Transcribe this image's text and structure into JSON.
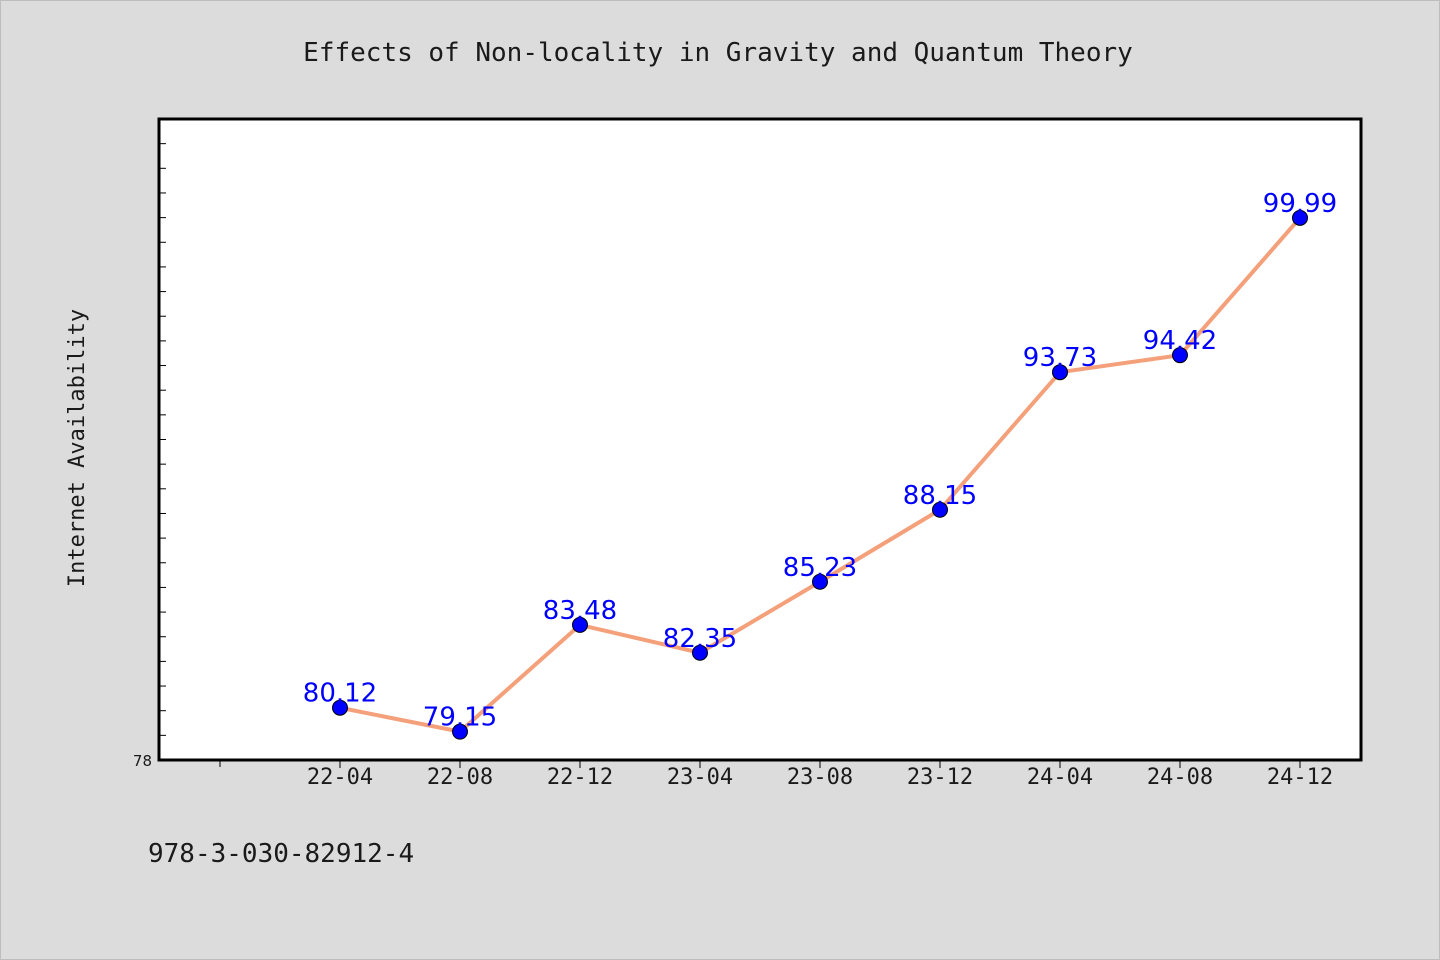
{
  "chart_data": {
    "type": "line",
    "title": "Effects of Non-locality in Gravity and Quantum Theory",
    "xlabel": "",
    "ylabel": "Internet Availability",
    "categories": [
      "22-04",
      "22-08",
      "22-12",
      "23-04",
      "23-08",
      "23-12",
      "24-04",
      "24-08",
      "24-12"
    ],
    "series": [
      {
        "values": [
          80.12,
          79.15,
          83.48,
          82.35,
          85.23,
          88.15,
          93.73,
          94.42,
          99.99
        ],
        "data_labels": [
          "80.12",
          "79.15",
          "83.48",
          "82.35",
          "85.23",
          "88.15",
          "93.73",
          "94.42",
          "99.99"
        ],
        "line_color": "#f4a07a",
        "marker_color": "#0000ff"
      }
    ],
    "ylim": [
      78,
      104
    ],
    "y_tick_labels": [
      "78"
    ],
    "grid": false,
    "legend": "none"
  },
  "annotation": {
    "text": "978-3-030-82912-4"
  },
  "colors": {
    "background": "#dcdcdc",
    "plot_background": "#ffffff",
    "axis": "#000000",
    "label_color": "#0000ff"
  }
}
